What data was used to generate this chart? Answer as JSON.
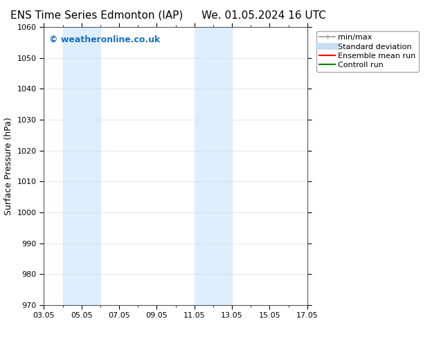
{
  "title_left": "ENS Time Series Edmonton (IAP)",
  "title_right": "We. 01.05.2024 16 UTC",
  "ylabel": "Surface Pressure (hPa)",
  "ylim": [
    970,
    1060
  ],
  "yticks": [
    970,
    980,
    990,
    1000,
    1010,
    1020,
    1030,
    1040,
    1050,
    1060
  ],
  "xtick_labels": [
    "03.05",
    "05.05",
    "07.05",
    "09.05",
    "11.05",
    "13.05",
    "15.05",
    "17.05"
  ],
  "xtick_positions": [
    0,
    2,
    4,
    6,
    8,
    10,
    12,
    14
  ],
  "xlim": [
    0,
    14
  ],
  "shaded_bands": [
    {
      "x_start": 1.0,
      "x_end": 3.0,
      "color": "#ddeeff"
    },
    {
      "x_start": 8.0,
      "x_end": 10.0,
      "color": "#ddeeff"
    }
  ],
  "watermark_text": "© weatheronline.co.uk",
  "watermark_color": "#1a6fc4",
  "watermark_fontsize": 9,
  "legend_entries": [
    {
      "label": "min/max",
      "color": "#999999",
      "linewidth": 1.2,
      "linestyle": "-",
      "type": "minmax"
    },
    {
      "label": "Standard deviation",
      "color": "#c8ddf0",
      "linewidth": 7,
      "linestyle": "-",
      "type": "bar"
    },
    {
      "label": "Ensemble mean run",
      "color": "red",
      "linewidth": 1.5,
      "linestyle": "-",
      "type": "line"
    },
    {
      "label": "Controll run",
      "color": "green",
      "linewidth": 1.5,
      "linestyle": "-",
      "type": "line"
    }
  ],
  "bg_color": "#ffffff",
  "grid_color": "#dddddd",
  "title_fontsize": 11,
  "axis_fontsize": 9,
  "tick_fontsize": 8,
  "legend_fontsize": 8
}
